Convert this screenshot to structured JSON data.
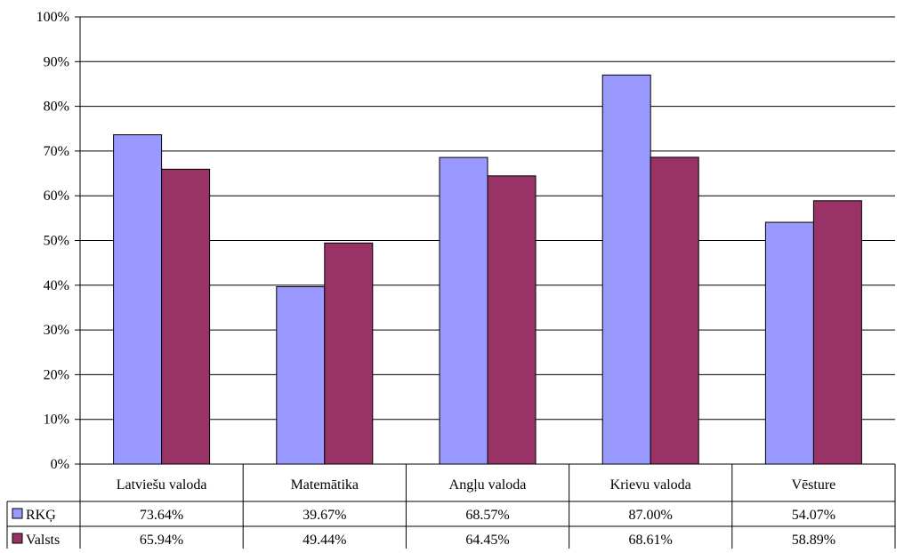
{
  "chart_data": {
    "type": "bar",
    "title": "",
    "xlabel": "",
    "ylabel": "",
    "categories": [
      "Latviešu valoda",
      "Matemātika",
      "Angļu valoda",
      "Krievu valoda",
      "Vēsture"
    ],
    "series": [
      {
        "name": "RKĢ",
        "color": "#9999ff",
        "values": [
          73.64,
          39.67,
          68.57,
          87.0,
          54.07
        ],
        "labels": [
          "73.64%",
          "39.67%",
          "68.57%",
          "87.00%",
          "54.07%"
        ]
      },
      {
        "name": "Valsts",
        "color": "#993366",
        "values": [
          65.94,
          49.44,
          64.45,
          68.61,
          58.89
        ],
        "labels": [
          "65.94%",
          "49.44%",
          "64.45%",
          "68.61%",
          "58.89%"
        ]
      }
    ],
    "ylim": [
      0,
      100
    ],
    "yticks": [
      0,
      10,
      20,
      30,
      40,
      50,
      60,
      70,
      80,
      90,
      100
    ],
    "ytick_labels": [
      "0%",
      "10%",
      "20%",
      "30%",
      "40%",
      "50%",
      "60%",
      "70%",
      "80%",
      "90%",
      "100%"
    ],
    "grid": true,
    "legend": "data-table"
  }
}
